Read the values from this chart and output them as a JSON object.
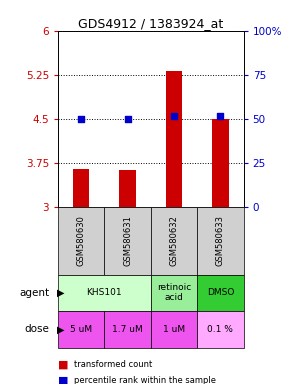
{
  "title": "GDS4912 / 1383924_at",
  "samples": [
    "GSM580630",
    "GSM580631",
    "GSM580632",
    "GSM580633"
  ],
  "bar_values": [
    3.65,
    3.63,
    5.32,
    4.5
  ],
  "dot_values": [
    50,
    50,
    52,
    52
  ],
  "ylim_left": [
    3,
    6
  ],
  "ylim_right": [
    0,
    100
  ],
  "yticks_left": [
    3,
    3.75,
    4.5,
    5.25,
    6
  ],
  "yticks_right": [
    0,
    25,
    50,
    75,
    100
  ],
  "ytick_labels_right": [
    "0",
    "25",
    "50",
    "75",
    "100%"
  ],
  "bar_color": "#cc0000",
  "dot_color": "#0000cc",
  "agent_groups": [
    {
      "cols": [
        0,
        1
      ],
      "text": "KHS101",
      "color": "#ccffcc"
    },
    {
      "cols": [
        2
      ],
      "text": "retinoic\nacid",
      "color": "#99ee99"
    },
    {
      "cols": [
        3
      ],
      "text": "DMSO",
      "color": "#33cc33"
    }
  ],
  "dose_labels": [
    "5 uM",
    "1.7 uM",
    "1 uM",
    "0.1 %"
  ],
  "dose_colors": [
    "#ee55ee",
    "#ee55ee",
    "#ee55ee",
    "#ffaaff"
  ],
  "sample_bg_color": "#d0d0d0",
  "legend_bar_label": "transformed count",
  "legend_dot_label": "percentile rank within the sample"
}
